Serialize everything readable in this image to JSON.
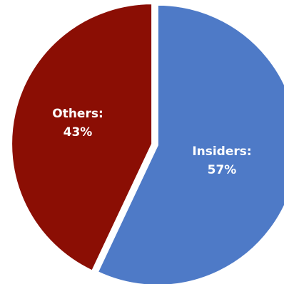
{
  "chart_data": {
    "type": "pie",
    "title": "",
    "slices": [
      {
        "name": "Insiders",
        "value": 57,
        "label_name": "Insiders:",
        "label_value": "57%",
        "color": "#4E7AC7"
      },
      {
        "name": "Others",
        "value": 43,
        "label_name": "Others:",
        "label_value": "43%",
        "color": "#8B0E04"
      }
    ],
    "start_angle_deg": 0,
    "direction": "clockwise",
    "separator_color": "#FFFFFF"
  }
}
